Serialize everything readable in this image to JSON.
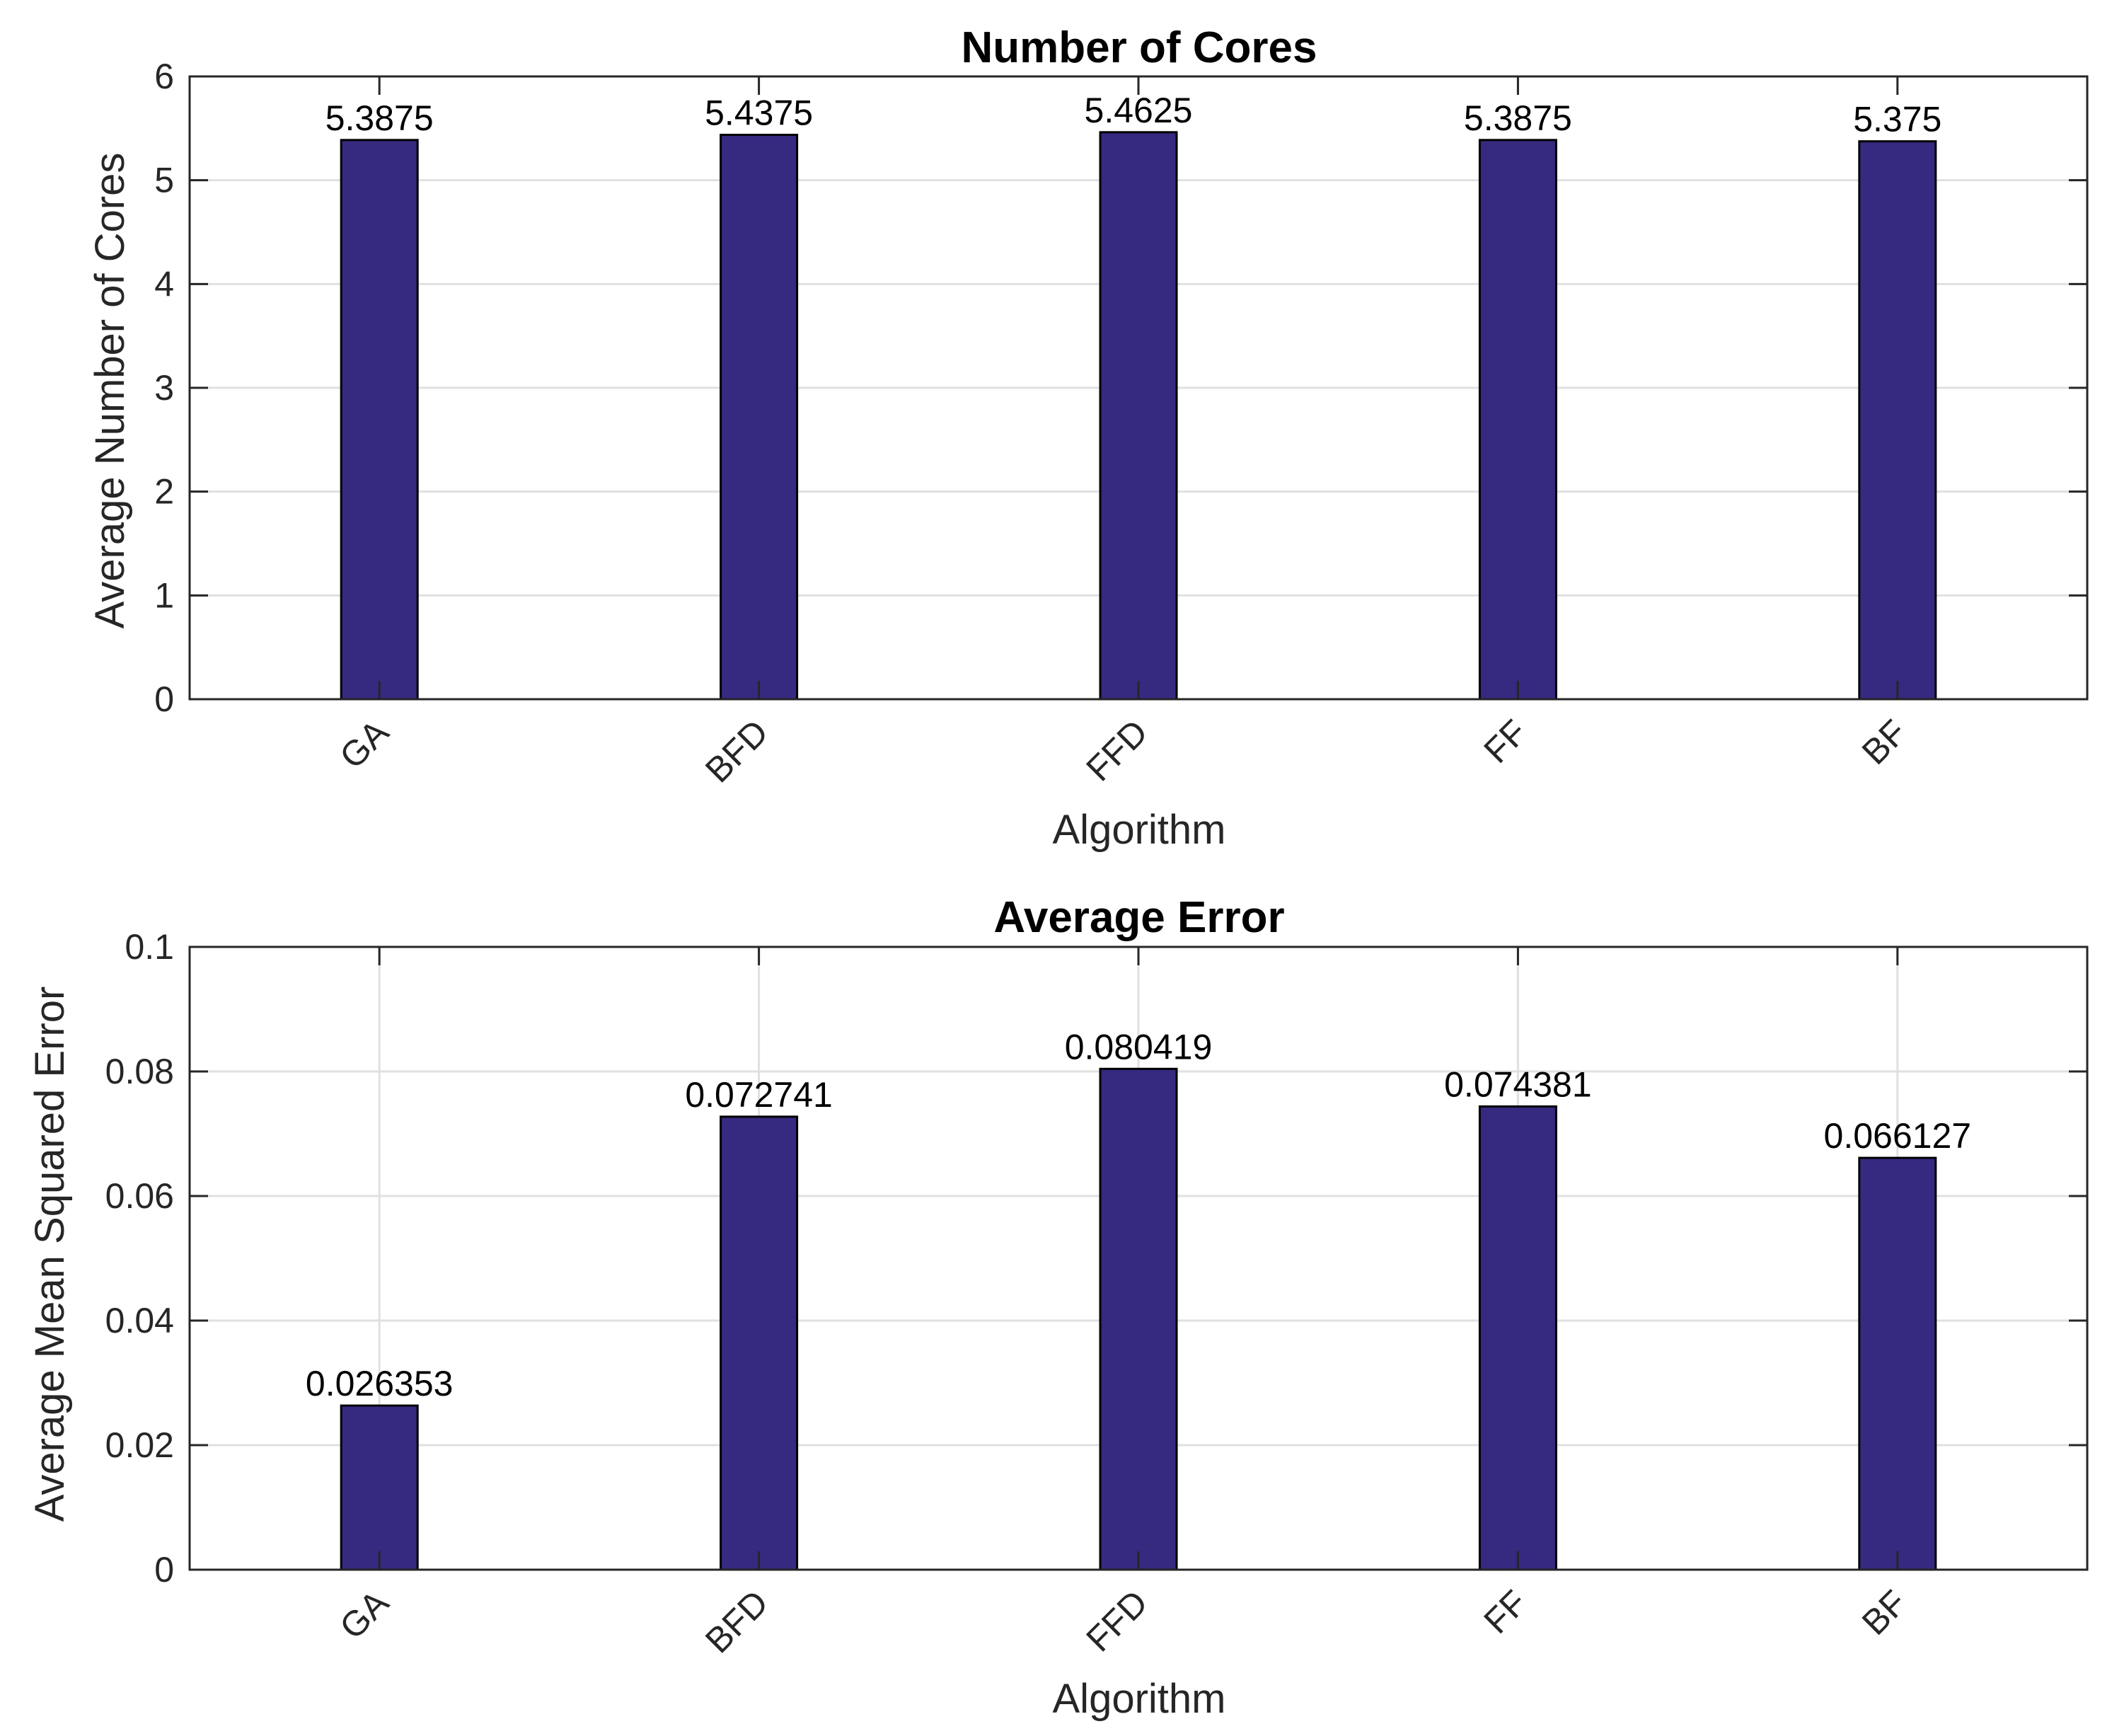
{
  "chart_data": [
    {
      "type": "bar",
      "title": "Number of Cores",
      "xlabel": "Algorithm",
      "ylabel": "Average Number of Cores",
      "categories": [
        "GA",
        "BFD",
        "FFD",
        "FF",
        "BF"
      ],
      "values": [
        5.3875,
        5.4375,
        5.4625,
        5.3875,
        5.375
      ],
      "value_labels": [
        "5.3875",
        "5.4375",
        "5.4625",
        "5.3875",
        "5.375"
      ],
      "ylim": [
        0,
        6
      ],
      "yticks": [
        0,
        1,
        2,
        3,
        4,
        5,
        6
      ],
      "ytick_labels": [
        "0",
        "1",
        "2",
        "3",
        "4",
        "5",
        "6"
      ],
      "grid": "horizontal",
      "bar_color": "#352a80"
    },
    {
      "type": "bar",
      "title": "Average Error",
      "xlabel": "Algorithm",
      "ylabel": "Average Mean Squared Error",
      "categories": [
        "GA",
        "BFD",
        "FFD",
        "FF",
        "BF"
      ],
      "values": [
        0.026353,
        0.072741,
        0.080419,
        0.074381,
        0.066127
      ],
      "value_labels": [
        "0.026353",
        "0.072741",
        "0.080419",
        "0.074381",
        "0.066127"
      ],
      "ylim": [
        0,
        0.1
      ],
      "yticks": [
        0,
        0.02,
        0.04,
        0.06,
        0.08,
        0.1
      ],
      "ytick_labels": [
        "0",
        "0.02",
        "0.04",
        "0.06",
        "0.08",
        "0.1"
      ],
      "grid": "both",
      "bar_color": "#352a80"
    }
  ]
}
